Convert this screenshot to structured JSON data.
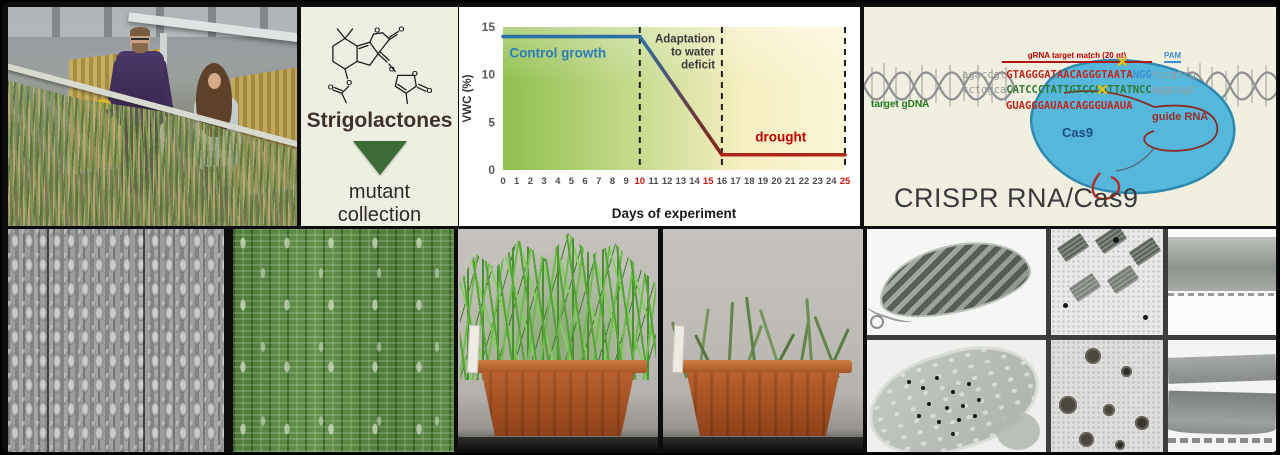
{
  "figure": {
    "strigolactones": {
      "title": "Strigolactones",
      "subtitle": "mutant collection",
      "arrow_color": "#3c6b35"
    },
    "crispr": {
      "caption": "CRISPR RNA/Cas9",
      "target_gdna_label": "target gDNA",
      "grna_match_label": "gRNA target match (20 nt)",
      "pam_label": "PAM",
      "cas9_label": "Cas9",
      "guide_rna_label": "guide RNA",
      "cut_mark": "✕",
      "seq": {
        "top_prefix": "agaccgt",
        "top_match": "GTAGGGATAACAGGGTAATA",
        "top_pam": "NGG",
        "top_suffix": "tccgtcg",
        "bottom_prefix": "tctggca",
        "bottom_match": "CATCCCTATTGTCCCATTATNCC",
        "bottom_suffix": "aggcagc",
        "rna": "GUAGGGAUAACAGGGUAAUA"
      },
      "colors": {
        "match": "#c1271c",
        "pam": "#3d8fd1",
        "complement": "#2e7a33",
        "cas9_fill": "#55b7db"
      }
    }
  },
  "chart_data": {
    "type": "line",
    "title": "",
    "xlabel": "Days of experiment",
    "ylabel": "VWC (%)",
    "xlim": [
      0,
      25
    ],
    "ylim": [
      0,
      15
    ],
    "xticks": [
      0,
      1,
      2,
      3,
      4,
      5,
      6,
      7,
      8,
      9,
      10,
      11,
      12,
      13,
      14,
      15,
      16,
      17,
      18,
      19,
      20,
      21,
      22,
      23,
      24,
      25
    ],
    "xticks_red": [
      10,
      15,
      25
    ],
    "yticks": [
      0,
      5,
      10,
      15
    ],
    "grid": false,
    "legend": "none",
    "plot_bg_gradient": [
      "#8fbf4d",
      "#c9dc92",
      "#f6efc1",
      "#fcf6d8"
    ],
    "dashed_lines_x": [
      10,
      16,
      25
    ],
    "series": [
      {
        "name": "Control growth",
        "color": "#2c6fa6",
        "x": [
          0,
          10
        ],
        "y": [
          14,
          14
        ]
      },
      {
        "name": "Adaptation to water deficit",
        "color_start": "#2c6fa6",
        "color_end": "#8c1d12",
        "x": [
          10,
          16
        ],
        "y": [
          14,
          1.6
        ]
      },
      {
        "name": "drought",
        "color": "#b22318",
        "x": [
          16,
          25
        ],
        "y": [
          1.6,
          1.6
        ]
      }
    ],
    "annotations": [
      {
        "text": "Control growth",
        "color": "#2e79b8",
        "x": 4.0,
        "y": 11.8,
        "bold": true,
        "align": "middle",
        "size": 13.5
      },
      {
        "text": "Adaptation to water deficit",
        "lines": [
          "Adaptation",
          "to water",
          "deficit"
        ],
        "color": "#3a3a3a",
        "x": 15.5,
        "y": 13.4,
        "bold": true,
        "align": "end",
        "size": 11.5
      },
      {
        "text": "drought",
        "color": "#c00000",
        "x": 20.3,
        "y": 3.0,
        "bold": true,
        "align": "middle",
        "size": 13.5
      }
    ]
  }
}
